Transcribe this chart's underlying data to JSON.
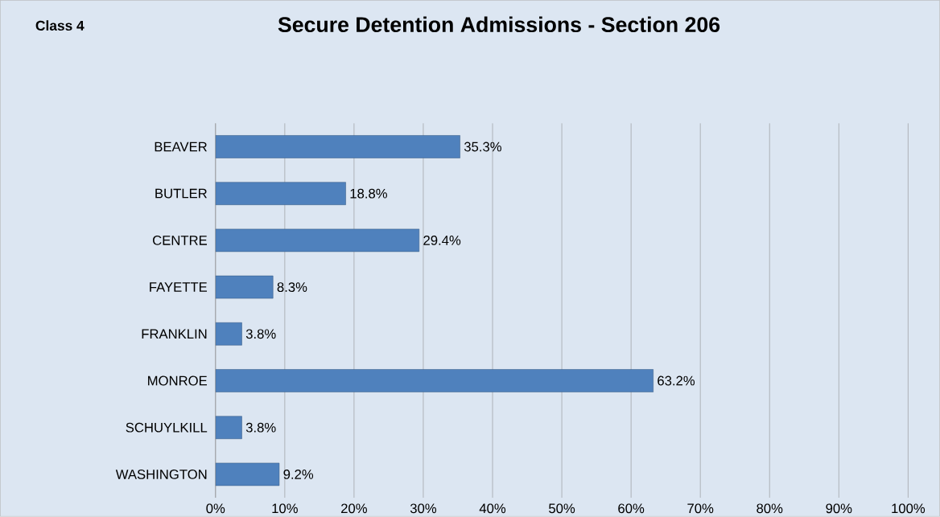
{
  "chart_data": {
    "type": "bar",
    "orientation": "horizontal",
    "title": "Secure Detention Admissions - Section 206",
    "annotations": [
      "Class 4"
    ],
    "categories": [
      "BEAVER",
      "BUTLER",
      "CENTRE",
      "FAYETTE",
      "FRANKLIN",
      "MONROE",
      "SCHUYLKILL",
      "WASHINGTON"
    ],
    "values": [
      35.3,
      18.8,
      29.4,
      8.3,
      3.8,
      63.2,
      3.8,
      9.2
    ],
    "value_labels": [
      "35.3%",
      "18.8%",
      "29.4%",
      "8.3%",
      "3.8%",
      "63.2%",
      "3.8%",
      "9.2%"
    ],
    "color": "#4f81bd",
    "xlim": [
      0,
      100
    ],
    "xticks": [
      {
        "value": 0,
        "label": "0%"
      },
      {
        "value": 10,
        "label": "10%"
      },
      {
        "value": 20,
        "label": "20%"
      },
      {
        "value": 30,
        "label": "30%"
      },
      {
        "value": 40,
        "label": "40%"
      },
      {
        "value": 50,
        "label": "50%"
      },
      {
        "value": 60,
        "label": "60%"
      },
      {
        "value": 70,
        "label": "70%"
      },
      {
        "value": 80,
        "label": "80%"
      },
      {
        "value": 90,
        "label": "90%"
      },
      {
        "value": 100,
        "label": "100%"
      }
    ],
    "grid": "x"
  }
}
